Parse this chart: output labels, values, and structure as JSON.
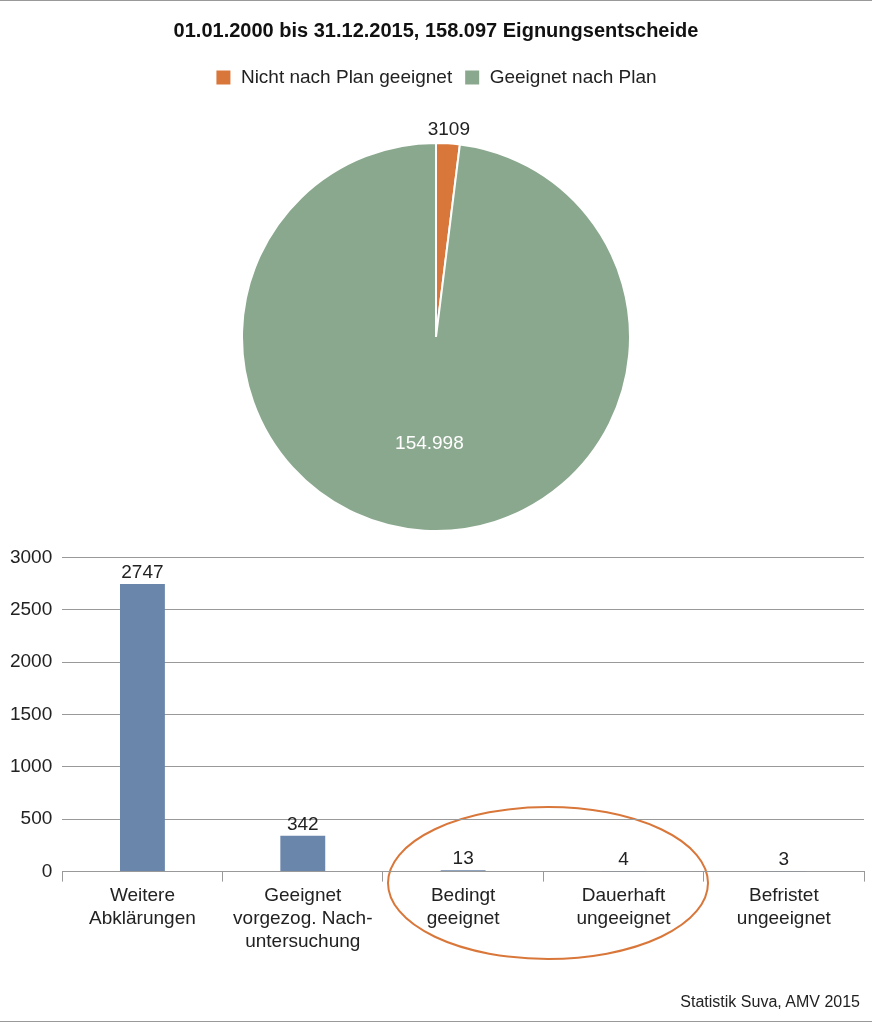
{
  "chart_data": [
    {
      "type": "pie",
      "title": "01.01.2000 bis 31.12.2015, 158.097 Eignungsentscheide",
      "categories": [
        "Nicht nach Plan geeignet",
        "Geeignet nach Plan"
      ],
      "values": [
        3109,
        154998
      ],
      "colors": [
        "#d9773a",
        "#8aa88e"
      ],
      "value_labels": [
        "3109",
        "154.998"
      ],
      "legend": "top"
    },
    {
      "type": "bar",
      "categories": [
        "Weitere\nAbklärungen",
        "Geeignet\nvorgezog. Nach-\nuntersuchung",
        "Bedingt\ngeeignet",
        "Dauerhaft\nungeeignet",
        "Befristet\nungeeignet"
      ],
      "values": [
        2747,
        342,
        13,
        4,
        3
      ],
      "color": "#6b86ab",
      "ylim": [
        0,
        3000
      ],
      "yticks": [
        0,
        500,
        1000,
        1500,
        2000,
        2500,
        3000
      ],
      "grid": "y",
      "data_labels": true,
      "annotations": [
        "Statistik Suva, AMV 2015"
      ]
    }
  ]
}
